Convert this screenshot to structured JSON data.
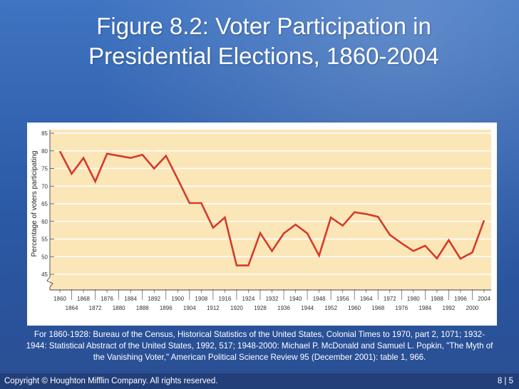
{
  "slide": {
    "title_line1": "Figure 8.2: Voter Participation in",
    "title_line2": "Presidential Elections, 1860-2004",
    "source_note": "For 1860-1928: Bureau of the Census, Historical Statistics of the United States, Colonial Times to 1970, part 2, 1071; 1932-1944: Statistical Abstract of the United States, 1992, 517; 1948-2000: Michael P. McDonald and Samuel L. Popkin, \"The Myth of the Vanishing Voter,\" American Political Science Review 95 (December 2001): table 1, 966.",
    "copyright": "Copyright © Houghton Mifflin Company. All rights reserved.",
    "page_number": "8 | 5"
  },
  "colors": {
    "plot_background": "#fbe6b8",
    "line": "#d63a2a",
    "background": "#2f5fa8"
  },
  "chart_data": {
    "type": "line",
    "title": "",
    "xlabel": "",
    "ylabel": "Percentage of voters participating",
    "x": [
      1860,
      1864,
      1868,
      1872,
      1876,
      1880,
      1884,
      1888,
      1892,
      1896,
      1900,
      1904,
      1908,
      1912,
      1916,
      1920,
      1924,
      1928,
      1932,
      1936,
      1940,
      1944,
      1948,
      1952,
      1956,
      1960,
      1964,
      1968,
      1972,
      1976,
      1980,
      1984,
      1988,
      1992,
      1996,
      2000,
      2004
    ],
    "series": [
      {
        "values": [
          79.9,
          73.5,
          78.0,
          71.3,
          79.2,
          78.6,
          78.0,
          78.9,
          75.0,
          78.6,
          72.0,
          65.2,
          65.2,
          58.2,
          61.1,
          47.5,
          47.5,
          56.7,
          51.6,
          56.6,
          59.1,
          56.6,
          50.3,
          61.1,
          58.8,
          62.6,
          62.1,
          61.3,
          56.2,
          53.8,
          51.6,
          53.1,
          49.5,
          54.7,
          49.4,
          51.2,
          60.3
        ]
      }
    ],
    "ylim": [
      45,
      85
    ],
    "y_ticks": [
      45,
      50,
      55,
      60,
      65,
      70,
      75,
      80,
      85
    ],
    "x_ticks_top": [
      "1860",
      "1868",
      "1876",
      "1884",
      "1892",
      "1900",
      "1908",
      "1916",
      "1924",
      "1932",
      "1940",
      "1948",
      "1956",
      "1964",
      "1972",
      "1980",
      "1988",
      "1996",
      "2004"
    ],
    "x_ticks_bottom": [
      "1864",
      "1872",
      "1880",
      "1888",
      "1896",
      "1904",
      "1912",
      "1920",
      "1928",
      "1936",
      "1944",
      "1952",
      "1960",
      "1968",
      "1976",
      "1984",
      "1992",
      "2000"
    ],
    "grid": true,
    "legend": "none"
  }
}
